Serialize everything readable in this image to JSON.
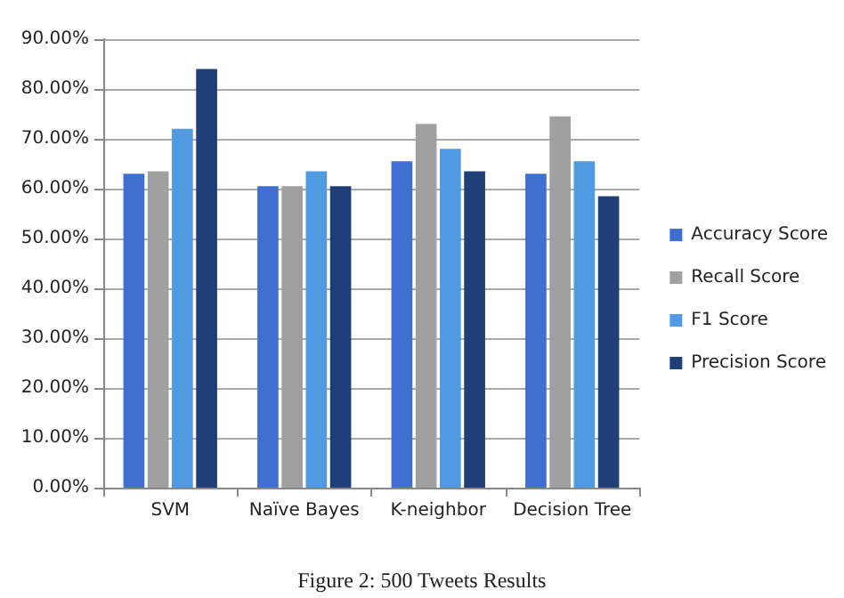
{
  "chart_data": {
    "type": "bar",
    "categories": [
      "SVM",
      "Naïve Bayes",
      "K-neighbor",
      "Decision Tree"
    ],
    "series": [
      {
        "name": "Accuracy Score",
        "color": "#3f6fd0",
        "values": [
          63,
          60.5,
          65.5,
          63
        ]
      },
      {
        "name": "Recall Score",
        "color": "#a0a0a0",
        "values": [
          63.5,
          60.5,
          73,
          74.5
        ]
      },
      {
        "name": "F1 Score",
        "color": "#4f9ae0",
        "values": [
          72,
          63.5,
          68,
          65.5
        ]
      },
      {
        "name": "Precision Score",
        "color": "#1f3f78",
        "values": [
          84,
          60.5,
          63.5,
          58.5
        ]
      }
    ],
    "ylim": [
      0,
      90
    ],
    "yticks": [
      {
        "value": 0,
        "label": "0.00%"
      },
      {
        "value": 10,
        "label": "10.00%"
      },
      {
        "value": 20,
        "label": "20.00%"
      },
      {
        "value": 30,
        "label": "30.00%"
      },
      {
        "value": 40,
        "label": "40.00%"
      },
      {
        "value": 50,
        "label": "50.00%"
      },
      {
        "value": 60,
        "label": "60.00%"
      },
      {
        "value": 70,
        "label": "70.00%"
      },
      {
        "value": 80,
        "label": "80.00%"
      },
      {
        "value": 90,
        "label": "90.00%"
      }
    ],
    "grid": "y",
    "legend": "right",
    "annotations": [
      "Figure 2: 500 Tweets Results"
    ]
  }
}
